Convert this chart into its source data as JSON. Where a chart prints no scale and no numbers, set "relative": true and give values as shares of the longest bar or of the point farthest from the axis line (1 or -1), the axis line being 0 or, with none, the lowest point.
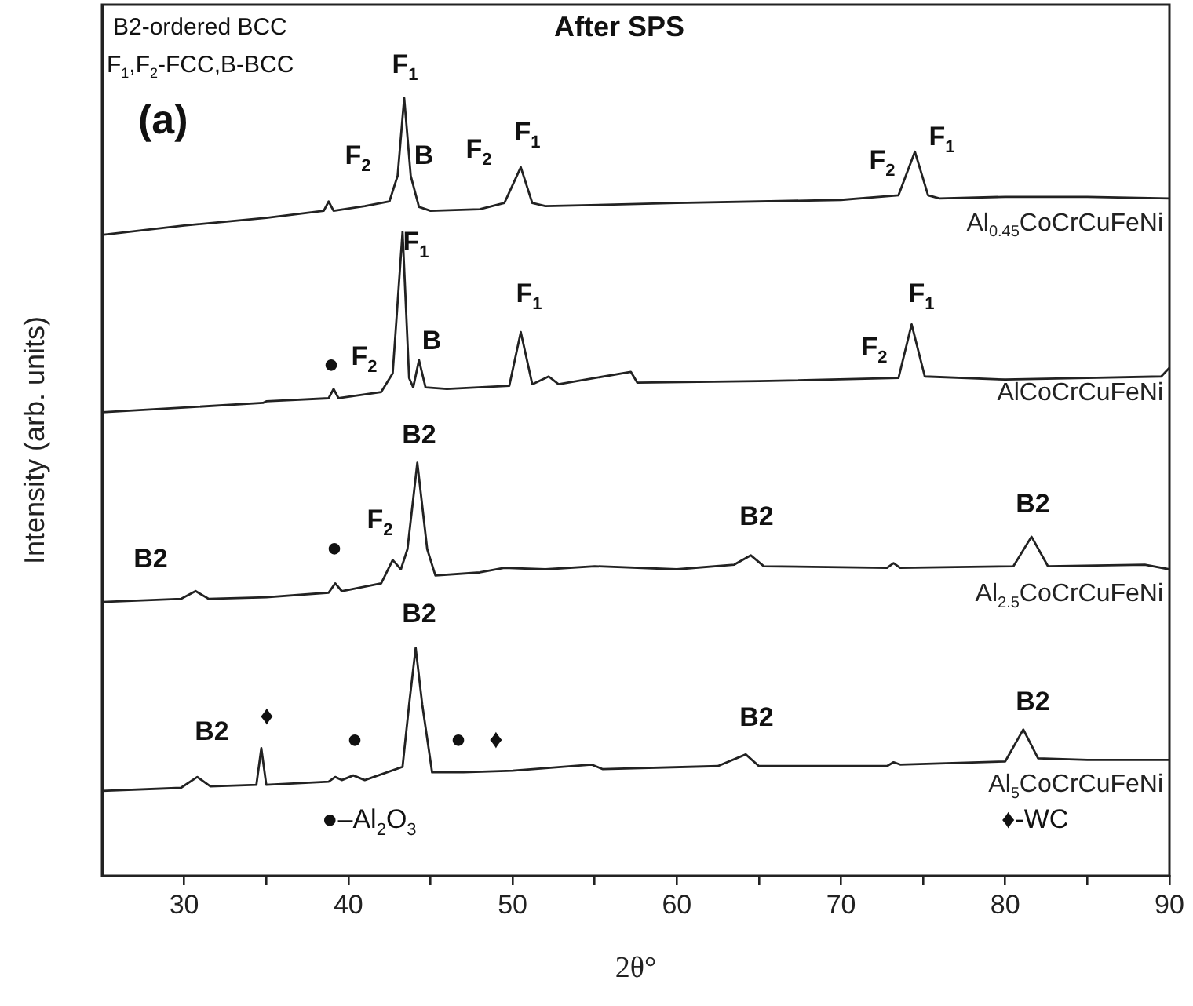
{
  "chart_data": {
    "type": "line",
    "title": "After SPS",
    "xlabel": "2θ°",
    "ylabel": "Intensity (arb. units)",
    "relative": true,
    "xlim": [
      25,
      90
    ],
    "xticks": [
      30,
      {
        "value": 35,
        "label": null
      },
      40,
      {
        "value": 45,
        "label": null
      },
      50,
      {
        "value": 55,
        "label": null
      },
      60,
      {
        "value": 65,
        "label": null
      },
      70,
      {
        "value": 75,
        "label": null
      },
      80,
      {
        "value": 85,
        "label": null
      },
      90
    ],
    "grid": false,
    "legend": false,
    "marker": "none",
    "line_style": "solid",
    "series": [
      {
        "name": "Al$_{0.45}$CoCrCuFeNi",
        "color": "#222222",
        "x": [
          25,
          30,
          35,
          38.5,
          38.8,
          39.1,
          41,
          42.5,
          43,
          43.4,
          43.8,
          44.3,
          45,
          48,
          49.5,
          50.5,
          51.2,
          52,
          60,
          70,
          73.5,
          74.5,
          75.3,
          76,
          80,
          85,
          90
        ],
        "values": [
          0.824,
          0.836,
          0.846,
          0.855,
          0.867,
          0.855,
          0.861,
          0.867,
          0.9,
          1.0,
          0.9,
          0.86,
          0.855,
          0.857,
          0.865,
          0.911,
          0.865,
          0.861,
          0.865,
          0.869,
          0.875,
          0.931,
          0.875,
          0.871,
          0.873,
          0.873,
          0.871
        ]
      },
      {
        "name": "AlCoCrCuFeNi",
        "color": "#222222",
        "x": [
          25,
          30,
          34.8,
          35,
          38.8,
          39.1,
          39.4,
          42,
          42.7,
          43.3,
          43.7,
          43.95,
          44.3,
          44.7,
          46,
          49.8,
          50.5,
          51.2,
          52.2,
          52.8,
          57.2,
          57.6,
          65,
          73.5,
          74.3,
          75.1,
          80,
          85,
          89.5,
          90
        ],
        "values": [
          0.596,
          0.602,
          0.608,
          0.61,
          0.614,
          0.626,
          0.614,
          0.622,
          0.646,
          0.828,
          0.64,
          0.628,
          0.663,
          0.628,
          0.626,
          0.63,
          0.699,
          0.632,
          0.642,
          0.632,
          0.648,
          0.634,
          0.636,
          0.64,
          0.709,
          0.642,
          0.638,
          0.64,
          0.642,
          0.653
        ]
      },
      {
        "name": "Al$_{2.5}$CoCrCuFeNi",
        "color": "#222222",
        "x": [
          25,
          29.8,
          30.7,
          31.5,
          35,
          38.8,
          39.2,
          39.6,
          42,
          42.7,
          43.2,
          43.6,
          44.2,
          44.8,
          45.3,
          48,
          49.5,
          52,
          55,
          60,
          63.5,
          64.5,
          65.3,
          72.8,
          73.2,
          73.6,
          80.5,
          81.6,
          82.6,
          88.5,
          90
        ],
        "values": [
          0.352,
          0.356,
          0.366,
          0.356,
          0.358,
          0.364,
          0.376,
          0.366,
          0.376,
          0.406,
          0.394,
          0.42,
          0.531,
          0.42,
          0.386,
          0.39,
          0.396,
          0.394,
          0.398,
          0.394,
          0.4,
          0.412,
          0.398,
          0.396,
          0.402,
          0.396,
          0.398,
          0.436,
          0.398,
          0.4,
          0.394
        ]
      },
      {
        "name": "Al$_{5}$CoCrCuFeNi",
        "color": "#222222",
        "x": [
          25,
          29.8,
          30.8,
          31.6,
          34.4,
          34.7,
          35,
          38.8,
          39.2,
          39.6,
          40.3,
          41,
          43.3,
          43.7,
          44.1,
          44.5,
          45.1,
          47,
          50,
          54.8,
          55.5,
          62.5,
          64.2,
          65,
          72.8,
          73.2,
          73.6,
          80,
          81.1,
          82,
          85,
          90
        ],
        "values": [
          0.109,
          0.113,
          0.127,
          0.115,
          0.117,
          0.164,
          0.117,
          0.121,
          0.127,
          0.123,
          0.129,
          0.123,
          0.14,
          0.22,
          0.293,
          0.22,
          0.133,
          0.133,
          0.135,
          0.143,
          0.137,
          0.141,
          0.156,
          0.141,
          0.141,
          0.146,
          0.143,
          0.147,
          0.188,
          0.151,
          0.149,
          0.149
        ]
      }
    ],
    "annotations": [
      "B2-ordered BCC",
      "F$_{1}$,F$_{2}$-FCC,B-BCC",
      "(a)",
      "●–Al$_{2}$O$_{3}$",
      "♦-WC",
      "F$_{1}$",
      "F$_{2}$",
      "B",
      "F$_{2}$",
      "F$_{1}$",
      "F$_{2}$",
      "F$_{1}$",
      "F$_{1}$",
      "F$_{1}$",
      "B",
      "F$_{2}$",
      "●",
      "F$_{2}$",
      "F$_{1}$",
      "B2",
      "F$_{2}$",
      "●",
      "B2",
      "B2",
      "B2",
      "B2",
      "B2",
      "♦",
      "●",
      "●",
      "♦",
      "B2",
      "B2"
    ]
  }
}
